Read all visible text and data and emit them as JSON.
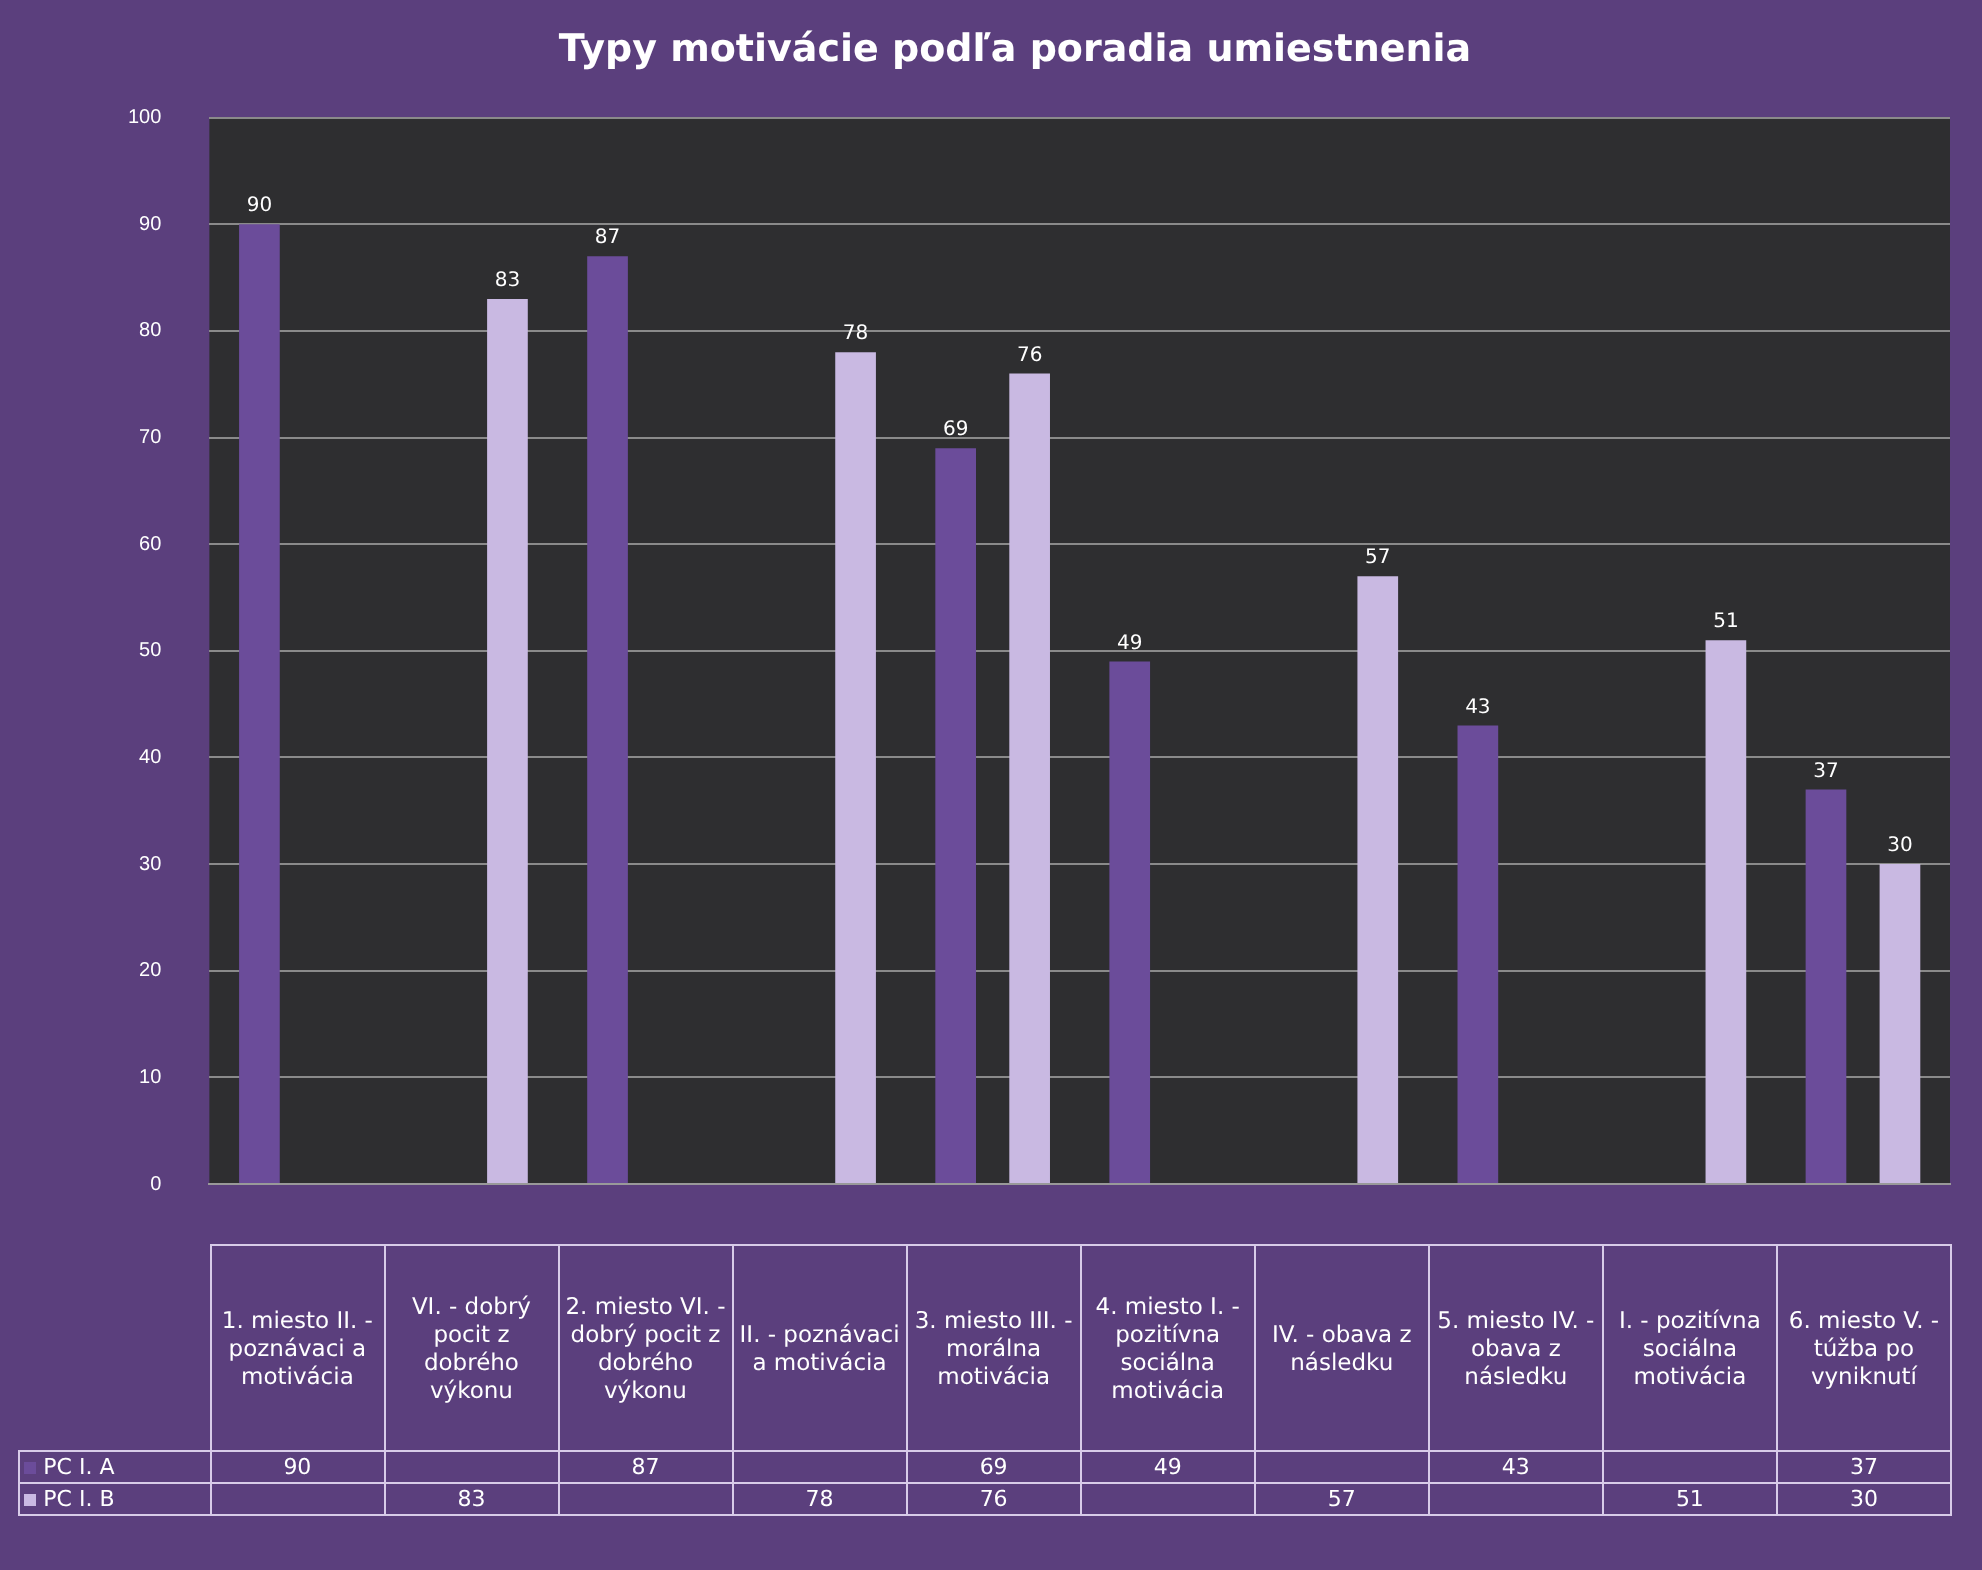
{
  "chart_data": {
    "type": "bar",
    "title": "Typy motivácie podľa poradia umiestnenia",
    "categories": [
      "1. miesto II. - poznávaci a motivácia",
      "VI. - dobrý pocit z dobrého výkonu",
      "2. miesto VI. - dobrý pocit z dobrého výkonu",
      "II. - poznávaci a motivácia",
      "3. miesto III. - morálna motivácia",
      "4. miesto I. - pozitívna sociálna motivácia",
      "IV. - obava z následku",
      "5. miesto IV. - obava z následku",
      "I. - pozitívna sociálna motivácia",
      "6. miesto V. - túžba po vyniknutí"
    ],
    "series": [
      {
        "name": "PC I. A",
        "color": "#6b4c9a",
        "values": [
          90,
          null,
          87,
          null,
          69,
          49,
          null,
          43,
          null,
          37
        ],
        "value_labels": [
          "90",
          null,
          "87",
          null,
          "69",
          "49",
          null,
          "43",
          null,
          "37"
        ]
      },
      {
        "name": "PC I. B",
        "color": "#c9b9e2",
        "values": [
          null,
          83,
          null,
          78,
          76,
          null,
          57,
          null,
          51,
          30
        ],
        "value_labels": [
          null,
          "83",
          null,
          "78",
          "76",
          null,
          "57",
          null,
          "51",
          "30"
        ]
      }
    ],
    "annotations": [
      "90",
      "87",
      "69",
      "49",
      "43",
      "37",
      "83",
      "78",
      "76",
      "57",
      "51",
      "30"
    ],
    "ylim": [
      0,
      100
    ],
    "yticks": [
      0,
      10,
      20,
      30,
      40,
      50,
      60,
      70,
      80,
      90,
      100
    ],
    "grid": "y",
    "legend": "bottom",
    "data_labels": true
  }
}
